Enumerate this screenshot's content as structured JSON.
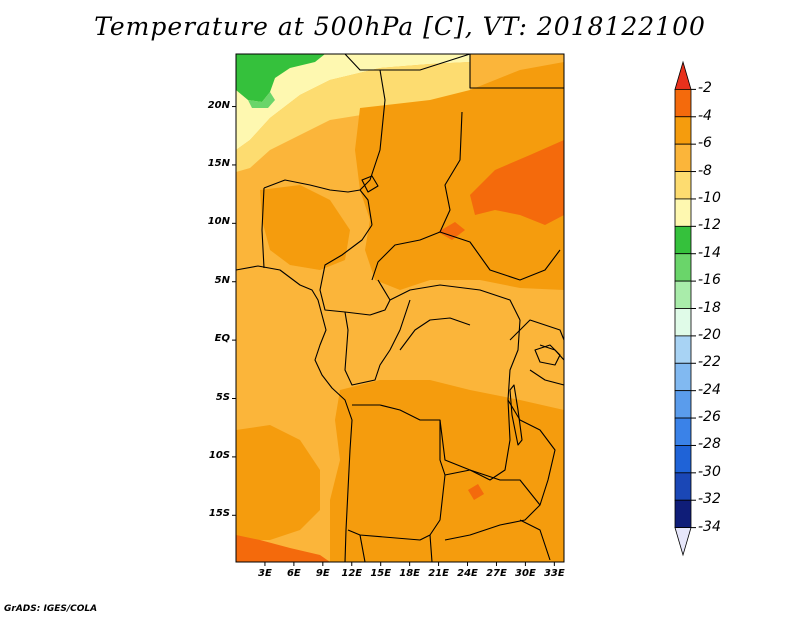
{
  "title": "Temperature at 500hPa [C], VT: 2018122100",
  "credit": "GrADS: IGES/COLA",
  "map": {
    "lon_range": [
      0,
      34
    ],
    "lat_range": [
      -19,
      24.5
    ],
    "lat_ticks": [
      "20N",
      "15N",
      "10N",
      "5N",
      "EQ",
      "5S",
      "10S",
      "15S"
    ],
    "lat_tick_values": [
      20,
      15,
      10,
      5,
      0,
      -5,
      -10,
      -15
    ],
    "lon_ticks": [
      "3E",
      "6E",
      "9E",
      "12E",
      "15E",
      "18E",
      "21E",
      "24E",
      "27E",
      "30E",
      "33E"
    ],
    "lon_tick_values": [
      3,
      6,
      9,
      12,
      15,
      18,
      21,
      24,
      27,
      30,
      33
    ]
  },
  "colorbar": {
    "labels": [
      "-2",
      "-4",
      "-6",
      "-8",
      "-10",
      "-12",
      "-14",
      "-16",
      "-18",
      "-20",
      "-22",
      "-24",
      "-26",
      "-28",
      "-30",
      "-32",
      "-34"
    ],
    "colors": [
      "#e8311c",
      "#f46a0c",
      "#f59c0d",
      "#fbb53a",
      "#fddc70",
      "#fef8b0",
      "#35c13c",
      "#6ad56a",
      "#a9ecaa",
      "#e0fbe8",
      "#a8d3f4",
      "#81b9f1",
      "#5a9cec",
      "#3a82e8",
      "#1f63d7",
      "#1a47b6",
      "#0f1d78",
      "#e6e6fa"
    ]
  },
  "colors": {
    "land_base": "#fbb53a",
    "warm": "#f59c0d",
    "warmest": "#f46a0c",
    "cool": "#fddc70",
    "cooler": "#fef8b0",
    "green": "#35c13c"
  }
}
